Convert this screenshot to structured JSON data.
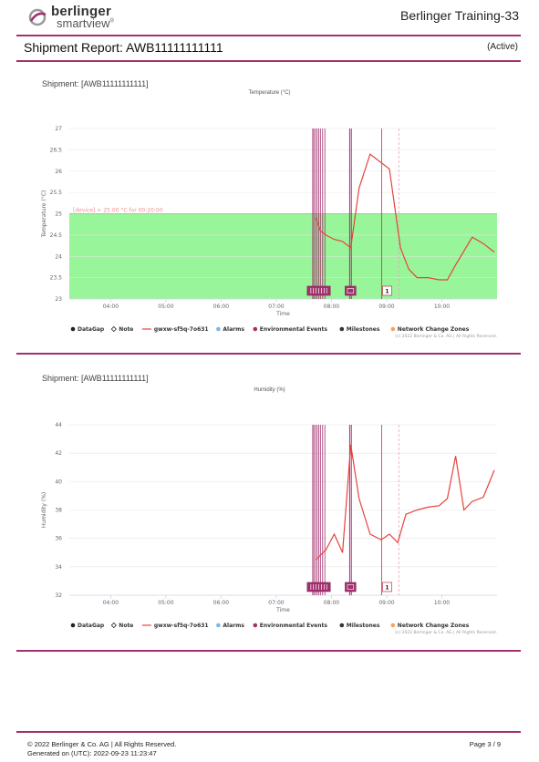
{
  "header": {
    "logo_name": "berlinger",
    "logo_sub": "smartview",
    "logo_mark": "®",
    "org": "Berlinger Training-33",
    "brand_color": "#a3306e"
  },
  "report": {
    "title": "Shipment Report: AWB11111111111",
    "status": "(Active)"
  },
  "charts": [
    {
      "shipment_label": "Shipment: [AWB11111111111]",
      "copyright": "(c) 2022 Berlinger & Co. AG | All Rights Reserved."
    },
    {
      "shipment_label": "Shipment: [AWB11111111111]",
      "copyright": "(c) 2022 Berlinger & Co. AG | All Rights Reserved."
    }
  ],
  "legend": [
    {
      "label": "DataGap",
      "icon": "dot-icon",
      "color": "#222222"
    },
    {
      "label": "Note",
      "icon": "diamond-icon",
      "color": "#222222"
    },
    {
      "label": "gwxw-sf5q-7o631",
      "icon": "line-icon",
      "color": "#e8423c"
    },
    {
      "label": "Alarms",
      "icon": "dot-icon",
      "color": "#7cb5ec"
    },
    {
      "label": "Environmental Events",
      "icon": "dot-icon",
      "color": "#a3306e"
    },
    {
      "label": "Milestones",
      "icon": "dot-icon",
      "color": "#333333"
    },
    {
      "label": "Network Change Zones",
      "icon": "dot-icon",
      "color": "#f7a35c"
    }
  ],
  "chart_data": [
    {
      "type": "line",
      "title": "Temperature (°C)",
      "xlabel": "Time",
      "ylabel": "Temperature (°C)",
      "x_ticks": [
        "04:00",
        "05:00",
        "06:00",
        "07:00",
        "08:00",
        "09:00",
        "10:00"
      ],
      "x_tick_hours": [
        4,
        5,
        6,
        7,
        8,
        9,
        10
      ],
      "xlim": [
        3.25,
        11.0
      ],
      "ylim": [
        23,
        27
      ],
      "y_ticks": [
        23,
        23.5,
        24,
        24.5,
        25,
        25.5,
        26,
        26.5,
        27
      ],
      "threshold": {
        "value": 25,
        "label": "[device] > 25.00 °C for 00:20:00",
        "color": "#99f599"
      },
      "series": [
        {
          "name": "gwxw-sf5q-7o631",
          "color": "#e8423c",
          "x": [
            7.72,
            7.8,
            7.9,
            8.05,
            8.2,
            8.35,
            8.5,
            8.7,
            8.9,
            9.05,
            9.25,
            9.4,
            9.55,
            9.75,
            9.95,
            10.1,
            10.25,
            10.55,
            10.75,
            10.95
          ],
          "y": [
            24.9,
            24.6,
            24.5,
            24.4,
            24.35,
            24.2,
            25.6,
            26.4,
            26.2,
            26.05,
            24.2,
            23.7,
            23.5,
            23.5,
            23.45,
            23.45,
            23.8,
            24.45,
            24.3,
            24.1
          ]
        }
      ],
      "events": {
        "environmental_times": [
          7.66,
          7.68,
          7.71,
          7.74,
          7.77,
          7.8,
          7.84,
          7.88
        ],
        "environmental_times_2": [
          8.33,
          8.36
        ],
        "milestone_times": [
          8.91
        ],
        "network_zone_times": [
          9.22
        ],
        "marker_label": "1"
      }
    },
    {
      "type": "line",
      "title": "Humidity (%)",
      "xlabel": "Time",
      "ylabel": "Humidity (%)",
      "x_ticks": [
        "04:00",
        "05:00",
        "06:00",
        "07:00",
        "08:00",
        "09:00",
        "10:00"
      ],
      "x_tick_hours": [
        4,
        5,
        6,
        7,
        8,
        9,
        10
      ],
      "xlim": [
        3.25,
        11.0
      ],
      "ylim": [
        32,
        44
      ],
      "y_ticks": [
        32,
        34,
        36,
        38,
        40,
        42,
        44
      ],
      "series": [
        {
          "name": "gwxw-sf5q-7o631",
          "color": "#e8423c",
          "x": [
            7.72,
            7.9,
            8.05,
            8.2,
            8.35,
            8.5,
            8.7,
            8.9,
            9.05,
            9.2,
            9.35,
            9.55,
            9.75,
            9.95,
            10.1,
            10.25,
            10.4,
            10.55,
            10.75,
            10.95
          ],
          "y": [
            34.5,
            35.2,
            36.3,
            35.0,
            42.6,
            38.8,
            36.3,
            35.9,
            36.3,
            35.7,
            37.7,
            38.0,
            38.2,
            38.3,
            38.8,
            41.8,
            38.0,
            38.6,
            38.9,
            40.8
          ]
        }
      ],
      "events": {
        "environmental_times": [
          7.66,
          7.68,
          7.71,
          7.74,
          7.77,
          7.8,
          7.84,
          7.88
        ],
        "environmental_times_2": [
          8.33,
          8.36
        ],
        "milestone_times": [
          8.91
        ],
        "network_zone_times": [
          9.22
        ],
        "marker_label": "1"
      }
    }
  ],
  "footer": {
    "copyright": "© 2022 Berlinger & Co. AG | All Rights Reserved.",
    "generated": "Generated on (UTC): 2022-09-23 11:23:47",
    "page": "Page 3 / 9"
  }
}
